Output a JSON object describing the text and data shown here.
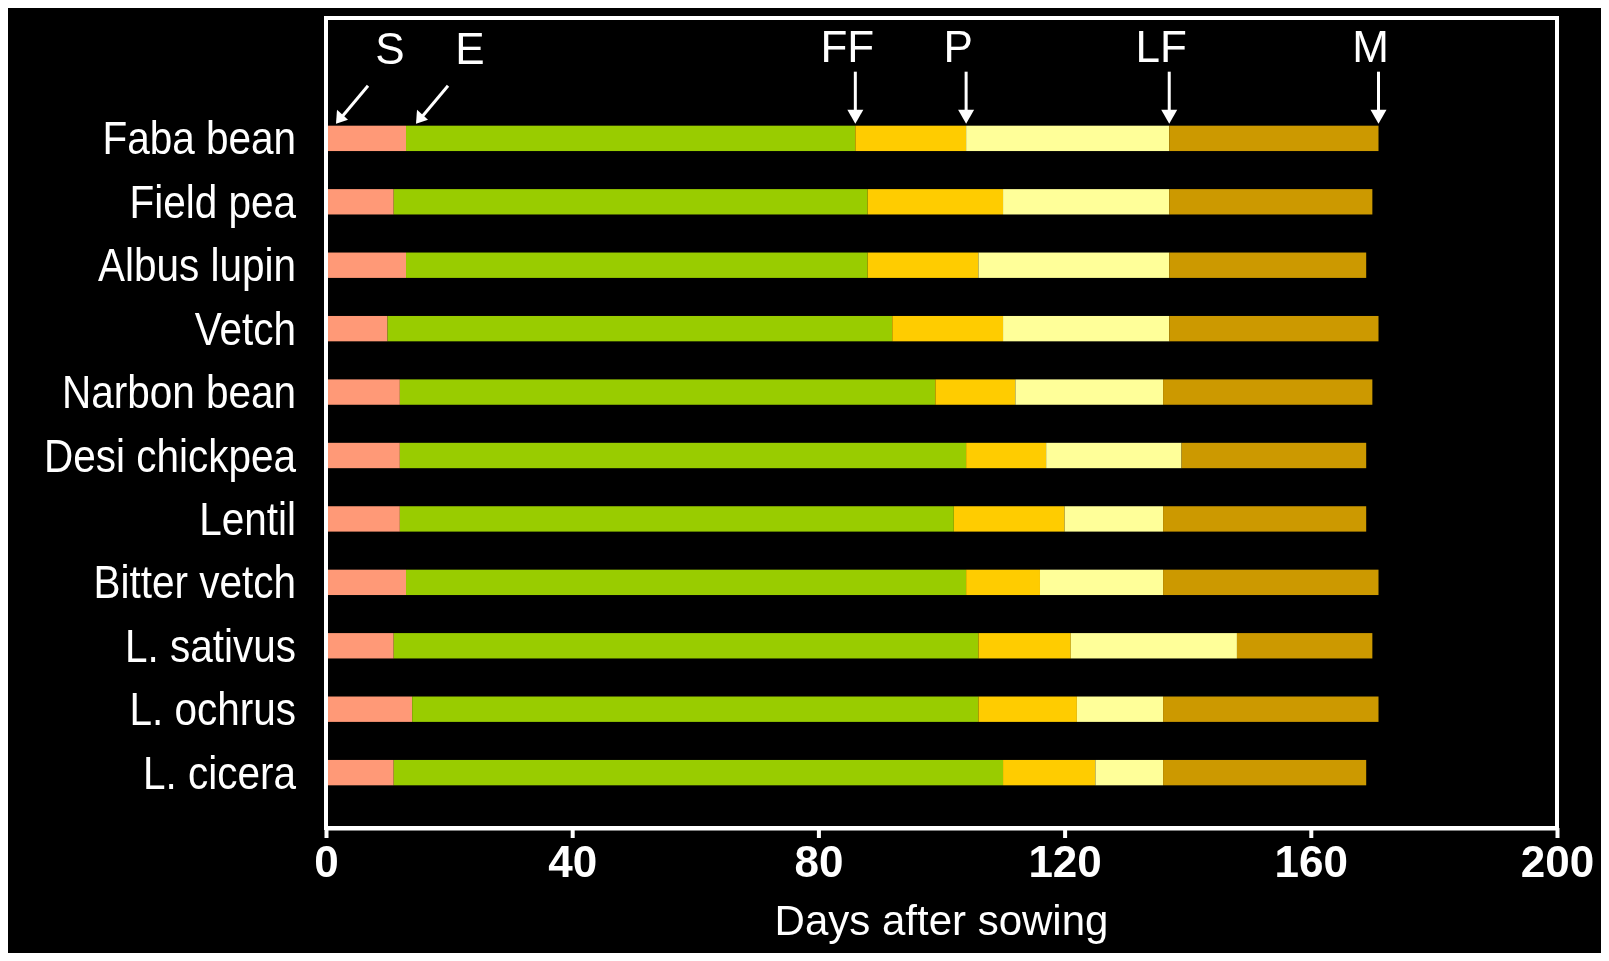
{
  "chart_data": {
    "type": "bar",
    "orientation": "horizontal",
    "stacked": true,
    "categories": [
      "Faba bean",
      "Field pea",
      "Albus lupin",
      "Vetch",
      "Narbon bean",
      "Desi chickpea",
      "Lentil",
      "Bitter vetch",
      "L. sativus",
      "L. ochrus",
      "L. cicera"
    ],
    "series": [
      {
        "color": "#ff9977",
        "values": [
          13,
          11,
          13,
          10,
          12,
          12,
          12,
          13,
          11,
          14,
          11
        ]
      },
      {
        "color": "#99cc00",
        "values": [
          73,
          77,
          75,
          82,
          87,
          92,
          90,
          91,
          95,
          92,
          99
        ]
      },
      {
        "color": "#ffcc00",
        "values": [
          18,
          22,
          18,
          18,
          13,
          13,
          18,
          12,
          15,
          16,
          15
        ]
      },
      {
        "color": "#ffff99",
        "values": [
          33,
          27,
          31,
          27,
          24,
          22,
          16,
          20,
          27,
          14,
          11
        ]
      },
      {
        "color": "#cc9900",
        "values": [
          34,
          33,
          32,
          34,
          34,
          30,
          33,
          35,
          22,
          35,
          33
        ]
      }
    ],
    "xlim": [
      0,
      200
    ],
    "xticks": [
      0,
      40,
      80,
      120,
      160,
      200
    ],
    "xlabel": "Days after sowing",
    "grid": false,
    "annotations": [
      {
        "text": "S",
        "x": 0,
        "y": "Faba bean"
      },
      {
        "text": "E",
        "x": 13,
        "y": "Faba bean"
      },
      {
        "text": "FF",
        "x": 86,
        "y": "Faba bean"
      },
      {
        "text": "P",
        "x": 104,
        "y": "Faba bean"
      },
      {
        "text": "LF",
        "x": 137,
        "y": "Faba bean"
      },
      {
        "text": "M",
        "x": 171,
        "y": "Faba bean"
      }
    ]
  }
}
